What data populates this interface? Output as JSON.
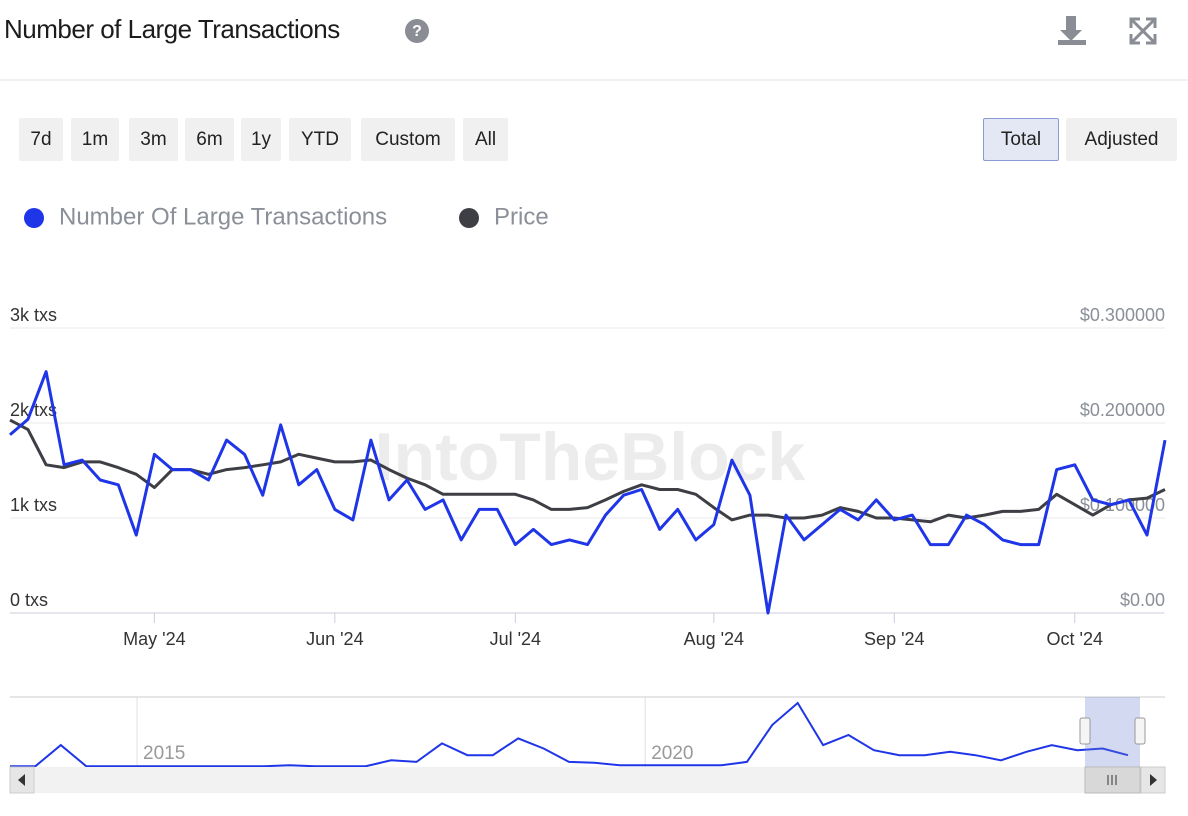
{
  "header": {
    "title": "Number of Large Transactions"
  },
  "controls": {
    "ranges": [
      "7d",
      "1m",
      "3m",
      "6m",
      "1y",
      "YTD",
      "Custom",
      "All"
    ],
    "modes": [
      "Total",
      "Adjusted"
    ]
  },
  "chart_data": {
    "type": "line",
    "watermark": "IntoTheBlock",
    "categories": [
      null,
      null,
      null,
      null,
      null,
      null,
      null,
      null,
      "May '24",
      null,
      null,
      null,
      null,
      null,
      null,
      null,
      null,
      null,
      "Jun '24",
      null,
      null,
      null,
      null,
      null,
      null,
      null,
      null,
      null,
      "Jul '24",
      null,
      null,
      null,
      null,
      null,
      null,
      null,
      null,
      null,
      null,
      "Aug '24",
      null,
      null,
      null,
      null,
      null,
      null,
      null,
      null,
      null,
      "Sep '24",
      null,
      null,
      null,
      null,
      null,
      null,
      null,
      null,
      null,
      "Oct '24",
      null,
      null,
      null,
      null,
      null
    ],
    "series": [
      {
        "name": "Number Of Large Transactions",
        "color": "#1f35e8",
        "values": [
          1877,
          2040,
          2540,
          1560,
          1610,
          1400,
          1350,
          820,
          1670,
          1510,
          1510,
          1400,
          1820,
          1670,
          1240,
          1980,
          1350,
          1510,
          1090,
          980,
          1820,
          1190,
          1400,
          1090,
          1190,
          770,
          1090,
          1090,
          720,
          880,
          720,
          770,
          720,
          1030,
          1240,
          1300,
          880,
          1090,
          770,
          930,
          1610,
          1240,
          0,
          1030,
          770,
          930,
          1090,
          980,
          1190,
          980,
          1030,
          720,
          720,
          1030,
          930,
          770,
          720,
          720,
          1510,
          1560,
          1190,
          1140,
          1190,
          820,
          1820
        ]
      },
      {
        "name": "Price",
        "color": "#3d3f45",
        "axis": "y2",
        "values": [
          0.203,
          0.193,
          0.156,
          0.153,
          0.159,
          0.159,
          0.153,
          0.146,
          0.132,
          0.151,
          0.151,
          0.146,
          0.151,
          0.153,
          0.156,
          0.159,
          0.167,
          0.163,
          0.159,
          0.159,
          0.161,
          0.151,
          0.142,
          0.135,
          0.125,
          0.125,
          0.125,
          0.125,
          0.125,
          0.119,
          0.109,
          0.109,
          0.111,
          0.119,
          0.128,
          0.135,
          0.13,
          0.13,
          0.125,
          0.111,
          0.098,
          0.103,
          0.103,
          0.1,
          0.1,
          0.103,
          0.111,
          0.107,
          0.1,
          0.1,
          0.098,
          0.096,
          0.103,
          0.1,
          0.103,
          0.107,
          0.107,
          0.109,
          0.125,
          0.114,
          0.103,
          0.114,
          0.119,
          0.121,
          0.13
        ]
      }
    ],
    "ylim": [
      0,
      3000
    ],
    "yticks": [
      {
        "value": 0,
        "label": "0 txs"
      },
      {
        "value": 1000,
        "label": "1k txs"
      },
      {
        "value": 2000,
        "label": "2k txs"
      },
      {
        "value": 3000,
        "label": "3k txs"
      }
    ],
    "y2lim": [
      0,
      0.3
    ],
    "y2ticks": [
      {
        "value": 0,
        "label": "$0.00"
      },
      {
        "value": 0.1,
        "label": "$0.100000"
      },
      {
        "value": 0.2,
        "label": "$0.200000"
      },
      {
        "value": 0.3,
        "label": "$0.300000"
      }
    ],
    "grid": true,
    "navigator": {
      "color": "#1f35e8",
      "categories": [
        null,
        null,
        null,
        null,
        null,
        "2015",
        null,
        null,
        null,
        null,
        null,
        null,
        null,
        null,
        null,
        null,
        null,
        null,
        null,
        null,
        null,
        null,
        null,
        null,
        null,
        "2020",
        null,
        null,
        null,
        null,
        null,
        null,
        null,
        null,
        null,
        null,
        null,
        null,
        null,
        null,
        null,
        null,
        null,
        null,
        null
      ],
      "values": [
        50,
        50,
        1300,
        50,
        50,
        50,
        50,
        50,
        50,
        50,
        50,
        100,
        50,
        50,
        50,
        400,
        300,
        1400,
        700,
        700,
        1700,
        1100,
        300,
        250,
        100,
        100,
        100,
        100,
        100,
        300,
        2500,
        3800,
        1300,
        1900,
        1000,
        700,
        700,
        900,
        700,
        400,
        900,
        1300,
        1000,
        1100,
        700
      ]
    }
  }
}
